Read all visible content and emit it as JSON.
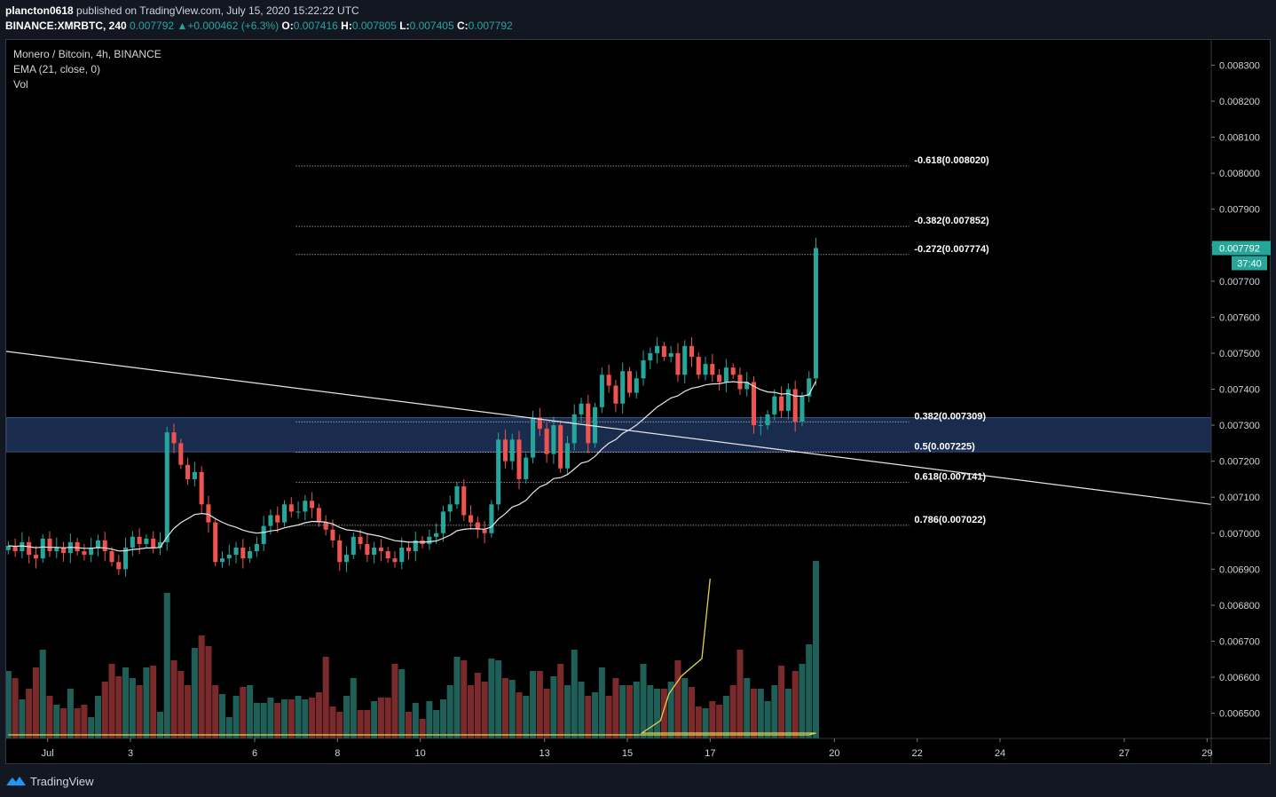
{
  "header": {
    "publisher": "plancton0618",
    "published_text": "published on TradingView.com, July 15, 2020 15:22:22 UTC",
    "symbol_interval": "BINANCE:XMRBTC, 240",
    "last": "0.007792",
    "change_arrow": "▲",
    "change": "+0.000462 (+6.3%)",
    "o_label": "O:",
    "o": "0.007416",
    "h_label": "H:",
    "h": "0.007805",
    "l_label": "L:",
    "l": "0.007405",
    "c_label": "C:",
    "c": "0.007792"
  },
  "legend": {
    "title": "Monero / Bitcoin, 4h, BINANCE",
    "ema": "EMA (21, close, 0)",
    "vol": "Vol"
  },
  "footer": {
    "brand": "TradingView",
    "logo_icon": "tradingview-logo-icon"
  },
  "colors": {
    "up": "#26a69a",
    "down": "#ef5350",
    "vol_up": "#1f5f58",
    "vol_down": "#7a2a2a",
    "ema": "#e8e8e8",
    "zone": "#1c2f52",
    "trend": "#e6e6e6",
    "badge": "#26a69a",
    "vol_ma": "#e0d34a"
  },
  "chart_data": {
    "type": "candlestick",
    "title": "Monero / Bitcoin, 4h, BINANCE",
    "ylim": [
      0.00643,
      0.00837
    ],
    "y_ticks": [
      "0.006500",
      "0.006600",
      "0.006700",
      "0.006800",
      "0.006900",
      "0.007000",
      "0.007100",
      "0.007200",
      "0.007300",
      "0.007400",
      "0.007500",
      "0.007600",
      "0.007700",
      "0.007800",
      "0.007900",
      "0.008000",
      "0.008100",
      "0.008200",
      "0.008300"
    ],
    "x_ticks": [
      {
        "label": "Jul",
        "day": 1
      },
      {
        "label": "3",
        "day": 3
      },
      {
        "label": "6",
        "day": 6
      },
      {
        "label": "8",
        "day": 8
      },
      {
        "label": "10",
        "day": 10
      },
      {
        "label": "13",
        "day": 13
      },
      {
        "label": "15",
        "day": 15
      },
      {
        "label": "17",
        "day": 17
      },
      {
        "label": "20",
        "day": 20
      },
      {
        "label": "22",
        "day": 22
      },
      {
        "label": "24",
        "day": 24
      },
      {
        "label": "27",
        "day": 27
      },
      {
        "label": "29",
        "day": 29
      }
    ],
    "x_range_days": [
      0.0,
      29.1
    ],
    "first_candle_day": 0.05,
    "candle_step_days": 0.1667,
    "last_price": "0.007792",
    "countdown": "37:40",
    "fib_start_day": 7.0,
    "fib_end_day": 21.8,
    "fib_levels": [
      {
        "label": "-0.618(0.008020)",
        "price": 0.00802
      },
      {
        "label": "-0.382(0.007852)",
        "price": 0.007852
      },
      {
        "label": "-0.272(0.007774)",
        "price": 0.007774
      },
      {
        "label": "0.382(0.007309)",
        "price": 0.007309
      },
      {
        "label": "0.5(0.007225)",
        "price": 0.007225
      },
      {
        "label": "0.618(0.007141)",
        "price": 0.007141
      },
      {
        "label": "0.786(0.007022)",
        "price": 0.007022
      }
    ],
    "zone": {
      "top": 0.007321,
      "bottom": 0.007226
    },
    "trendline": {
      "start": {
        "day": 0.0,
        "price": 0.007505
      },
      "end": {
        "day": 29.1,
        "price": 0.00708
      }
    },
    "closes": [
      0.006965,
      0.00695,
      0.006975,
      0.00694,
      0.00693,
      0.006985,
      0.00695,
      0.00696,
      0.006945,
      0.006975,
      0.00695,
      0.00694,
      0.00696,
      0.00698,
      0.00695,
      0.00692,
      0.0069,
      0.00696,
      0.00699,
      0.00697,
      0.006985,
      0.00696,
      0.006975,
      0.00728,
      0.00725,
      0.00719,
      0.00715,
      0.00717,
      0.00708,
      0.00703,
      0.00692,
      0.00693,
      0.00694,
      0.00696,
      0.00693,
      0.00695,
      0.00697,
      0.00702,
      0.00705,
      0.00703,
      0.00708,
      0.00706,
      0.00706,
      0.00709,
      0.00707,
      0.00703,
      0.00701,
      0.00698,
      0.00692,
      0.00694,
      0.00699,
      0.00697,
      0.00694,
      0.00696,
      0.00695,
      0.00693,
      0.00692,
      0.00696,
      0.00695,
      0.00698,
      0.00697,
      0.00699,
      0.007,
      0.00706,
      0.00708,
      0.00713,
      0.00705,
      0.00703,
      0.00701,
      0.007,
      0.00708,
      0.00726,
      0.0072,
      0.00726,
      0.00715,
      0.00721,
      0.00732,
      0.00729,
      0.00722,
      0.0073,
      0.00718,
      0.00725,
      0.00733,
      0.00736,
      0.00725,
      0.00735,
      0.00744,
      0.00741,
      0.00736,
      0.00745,
      0.00739,
      0.00743,
      0.00748,
      0.0075,
      0.00752,
      0.00749,
      0.0075,
      0.00744,
      0.00752,
      0.00749,
      0.00744,
      0.00747,
      0.00744,
      0.00742,
      0.00746,
      0.00744,
      0.0074,
      0.00742,
      0.0073,
      0.0073,
      0.00733,
      0.00738,
      0.00734,
      0.0074,
      0.00731,
      0.00738,
      0.00743,
      0.007792
    ],
    "volume_scale_note": "volume bars in relative units 0-100",
    "volumes": [
      38,
      34,
      22,
      28,
      40,
      50,
      24,
      19,
      17,
      28,
      17,
      19,
      12,
      24,
      32,
      42,
      35,
      40,
      34,
      30,
      40,
      41,
      15,
      82,
      44,
      38,
      30,
      51,
      58,
      52,
      30,
      25,
      12,
      24,
      29,
      30,
      20,
      20,
      23,
      20,
      22,
      22,
      24,
      22,
      23,
      26,
      46,
      18,
      15,
      24,
      34,
      16,
      16,
      21,
      23,
      23,
      42,
      39,
      15,
      20,
      11,
      21,
      16,
      22,
      30,
      46,
      44,
      30,
      37,
      32,
      45,
      44,
      34,
      33,
      26,
      24,
      38,
      38,
      28,
      35,
      42,
      30,
      50,
      32,
      24,
      26,
      40,
      24,
      34,
      30,
      30,
      32,
      42,
      30,
      28,
      28,
      32,
      44,
      34,
      29,
      18,
      17,
      21,
      19,
      24,
      30,
      50,
      34,
      28,
      28,
      21,
      30,
      41,
      28,
      38,
      42,
      53,
      100
    ],
    "volume_ma_values": [
      2,
      2,
      2,
      2,
      2,
      2,
      2,
      2,
      2,
      2,
      2,
      2,
      2,
      2,
      2,
      2,
      2,
      2,
      2,
      2,
      2,
      2,
      2,
      2,
      2,
      2,
      2,
      2,
      2,
      2,
      2,
      2,
      2,
      2,
      2,
      2,
      2,
      2,
      2,
      2,
      2,
      2,
      2,
      2,
      2,
      2,
      2,
      2,
      2,
      2,
      2,
      2,
      2,
      2,
      2,
      2,
      2,
      2,
      2,
      2,
      2,
      2,
      2,
      2,
      2,
      2,
      2,
      2,
      2,
      2,
      2,
      2,
      2,
      2,
      2,
      2,
      2,
      2,
      2,
      2,
      2,
      2,
      2,
      2,
      2,
      2,
      2,
      2,
      2,
      2,
      2,
      2,
      2,
      2,
      2,
      2,
      2,
      2,
      2,
      2,
      2,
      2,
      2,
      2,
      2,
      2,
      2,
      2,
      2,
      2,
      2,
      2,
      2,
      2,
      2,
      2,
      2,
      3
    ],
    "volume_ma_tail": [
      {
        "day": 15.35,
        "vol": 3
      },
      {
        "day": 15.8,
        "vol": 10
      },
      {
        "day": 16.0,
        "vol": 25
      },
      {
        "day": 16.3,
        "vol": 35
      },
      {
        "day": 16.8,
        "vol": 45
      },
      {
        "day": 17.0,
        "vol": 90
      }
    ]
  }
}
